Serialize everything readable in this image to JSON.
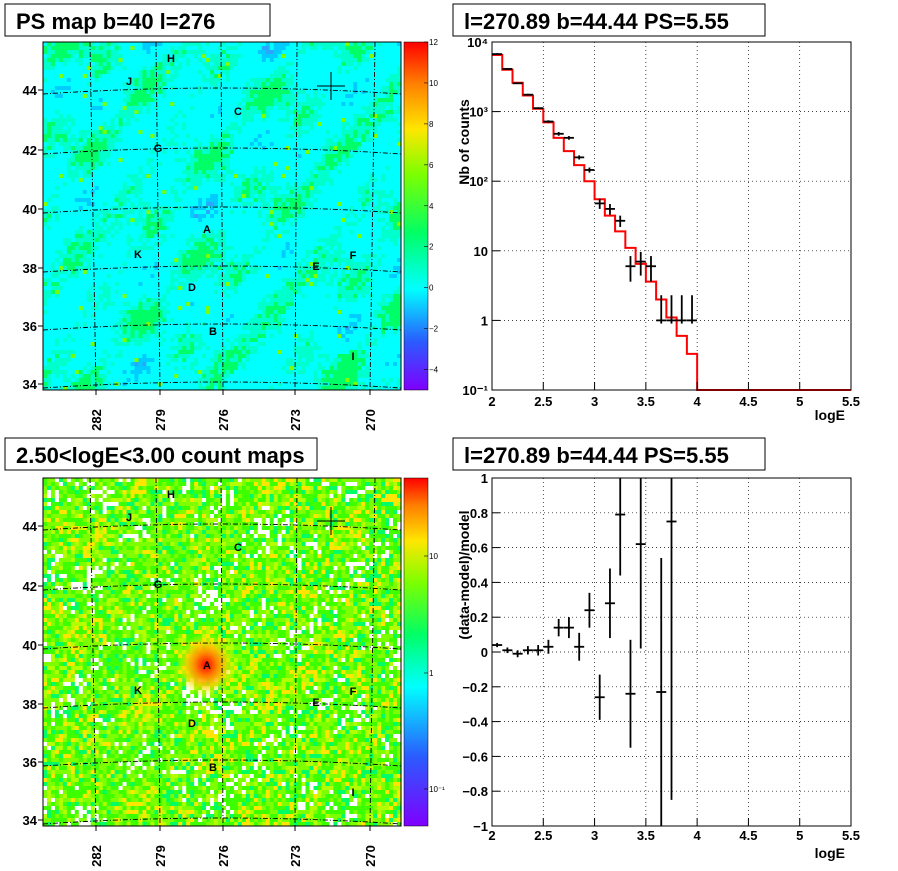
{
  "panels": {
    "top_left_title": "PS map b=40 l=276",
    "bottom_left_title": "2.50<logE<3.00 count maps",
    "top_right_title": "l=270.89 b=44.44 PS=5.55",
    "bottom_right_title": "l=270.89 b=44.44 PS=5.55"
  },
  "colors": {
    "model_line": "#ff0000",
    "data": "#000000"
  },
  "chart_data": [
    {
      "type": "heatmap",
      "title": "PS map b=40 l=276",
      "x_ticks": [
        "282",
        "279",
        "276",
        "273",
        "270"
      ],
      "y_ticks": [
        "44",
        "42",
        "40",
        "38",
        "36",
        "34"
      ],
      "colorbar_ticks": [
        "12",
        "10",
        "8",
        "6",
        "4",
        "2",
        "0",
        "−2",
        "−4"
      ],
      "colorbar_range": [
        -5,
        12
      ],
      "sources": [
        "H",
        "J",
        "C",
        "G",
        "A",
        "K",
        "E",
        "F",
        "D",
        "B",
        "I"
      ]
    },
    {
      "type": "heatmap",
      "title": "2.50<logE<3.00 count maps",
      "x_ticks": [
        "282",
        "279",
        "276",
        "273",
        "270"
      ],
      "y_ticks": [
        "44",
        "42",
        "40",
        "38",
        "36",
        "34"
      ],
      "colorbar_ticks": [
        "10",
        "1",
        "10⁻¹"
      ],
      "colorbar_scale": "log",
      "sources": [
        "H",
        "J",
        "C",
        "G",
        "A",
        "K",
        "E",
        "F",
        "D",
        "B",
        "I"
      ]
    },
    {
      "type": "line",
      "title": "l=270.89 b=44.44 PS=5.55",
      "xlabel": "logE",
      "ylabel": "Nb of counts",
      "xlim": [
        2,
        5.5
      ],
      "ylim": [
        0.1,
        10000
      ],
      "yscale": "log",
      "grid": true,
      "x_ticks": [
        "2",
        "2.5",
        "3",
        "3.5",
        "4",
        "4.5",
        "5",
        "5.5"
      ],
      "y_ticks": [
        "10⁴",
        "10³",
        "10²",
        "10",
        "1",
        "10⁻¹"
      ],
      "series": [
        {
          "kind": "step",
          "x_edges": [
            2.0,
            2.1,
            2.2,
            2.3,
            2.4,
            2.5,
            2.6,
            2.7,
            2.8,
            2.9,
            3.0,
            3.1,
            3.2,
            3.3,
            3.4,
            3.5,
            3.6,
            3.7,
            3.8,
            3.9,
            4.0,
            4.1,
            4.2,
            4.3,
            4.4,
            4.5,
            4.6,
            4.7,
            4.8,
            4.9,
            5.0,
            5.1,
            5.2,
            5.3,
            5.4,
            5.5
          ],
          "values": [
            6500,
            4000,
            2600,
            1700,
            1100,
            700,
            420,
            270,
            170,
            100,
            55,
            32,
            19,
            11,
            6.5,
            3.6,
            2.0,
            1.1,
            0.6,
            0.33,
            0.1,
            0.1,
            0.1,
            0.1,
            0.1,
            0.1,
            0.1,
            0.1,
            0.1,
            0.1,
            0.1,
            0.1,
            0.1,
            0.1,
            0.1
          ]
        },
        {
          "kind": "points",
          "x": [
            2.05,
            2.15,
            2.25,
            2.35,
            2.45,
            2.55,
            2.65,
            2.75,
            2.85,
            2.95,
            3.05,
            3.15,
            3.25,
            3.35,
            3.45,
            3.55,
            3.65,
            3.75,
            3.85,
            3.95
          ],
          "y": [
            6700,
            4100,
            2550,
            1750,
            1120,
            720,
            480,
            420,
            220,
            145,
            48,
            40,
            27,
            6,
            7,
            6,
            1,
            1,
            1,
            1
          ],
          "yerr_low": [
            6500,
            4000,
            2500,
            1700,
            1090,
            690,
            450,
            395,
            205,
            133,
            40,
            33,
            22,
            3.6,
            4.4,
            3.6,
            0.9,
            0.9,
            0.9,
            0.9
          ],
          "yerr_high": [
            6900,
            4200,
            2600,
            1800,
            1150,
            750,
            510,
            445,
            235,
            157,
            56,
            47,
            32,
            8.4,
            9.6,
            8.4,
            2.3,
            2.3,
            2.3,
            2.3
          ]
        }
      ]
    },
    {
      "type": "scatter",
      "title": "l=270.89 b=44.44 PS=5.55",
      "xlabel": "logE",
      "ylabel": "(data-model)/model",
      "xlim": [
        2,
        5.5
      ],
      "ylim": [
        -1,
        1
      ],
      "grid": true,
      "x_ticks": [
        "2",
        "2.5",
        "3",
        "3.5",
        "4",
        "4.5",
        "5",
        "5.5"
      ],
      "y_ticks": [
        "1",
        "0.8",
        "0.6",
        "0.4",
        "0.2",
        "0",
        "−0.2",
        "−0.4",
        "−0.6",
        "−0.8",
        "−1"
      ],
      "series": [
        {
          "x": [
            2.05,
            2.15,
            2.25,
            2.35,
            2.45,
            2.55,
            2.65,
            2.75,
            2.85,
            2.95,
            3.05,
            3.15,
            3.25,
            3.35,
            3.45,
            3.65,
            3.75
          ],
          "y": [
            0.04,
            0.01,
            -0.01,
            0.01,
            0.01,
            0.03,
            0.14,
            0.14,
            0.03,
            0.24,
            -0.26,
            0.28,
            0.79,
            -0.24,
            0.62,
            -0.23,
            0.75
          ],
          "err": [
            0.012,
            0.016,
            0.02,
            0.024,
            0.03,
            0.04,
            0.05,
            0.06,
            0.08,
            0.1,
            0.13,
            0.2,
            0.35,
            0.31,
            0.6,
            0.77,
            1.6
          ]
        }
      ]
    }
  ]
}
